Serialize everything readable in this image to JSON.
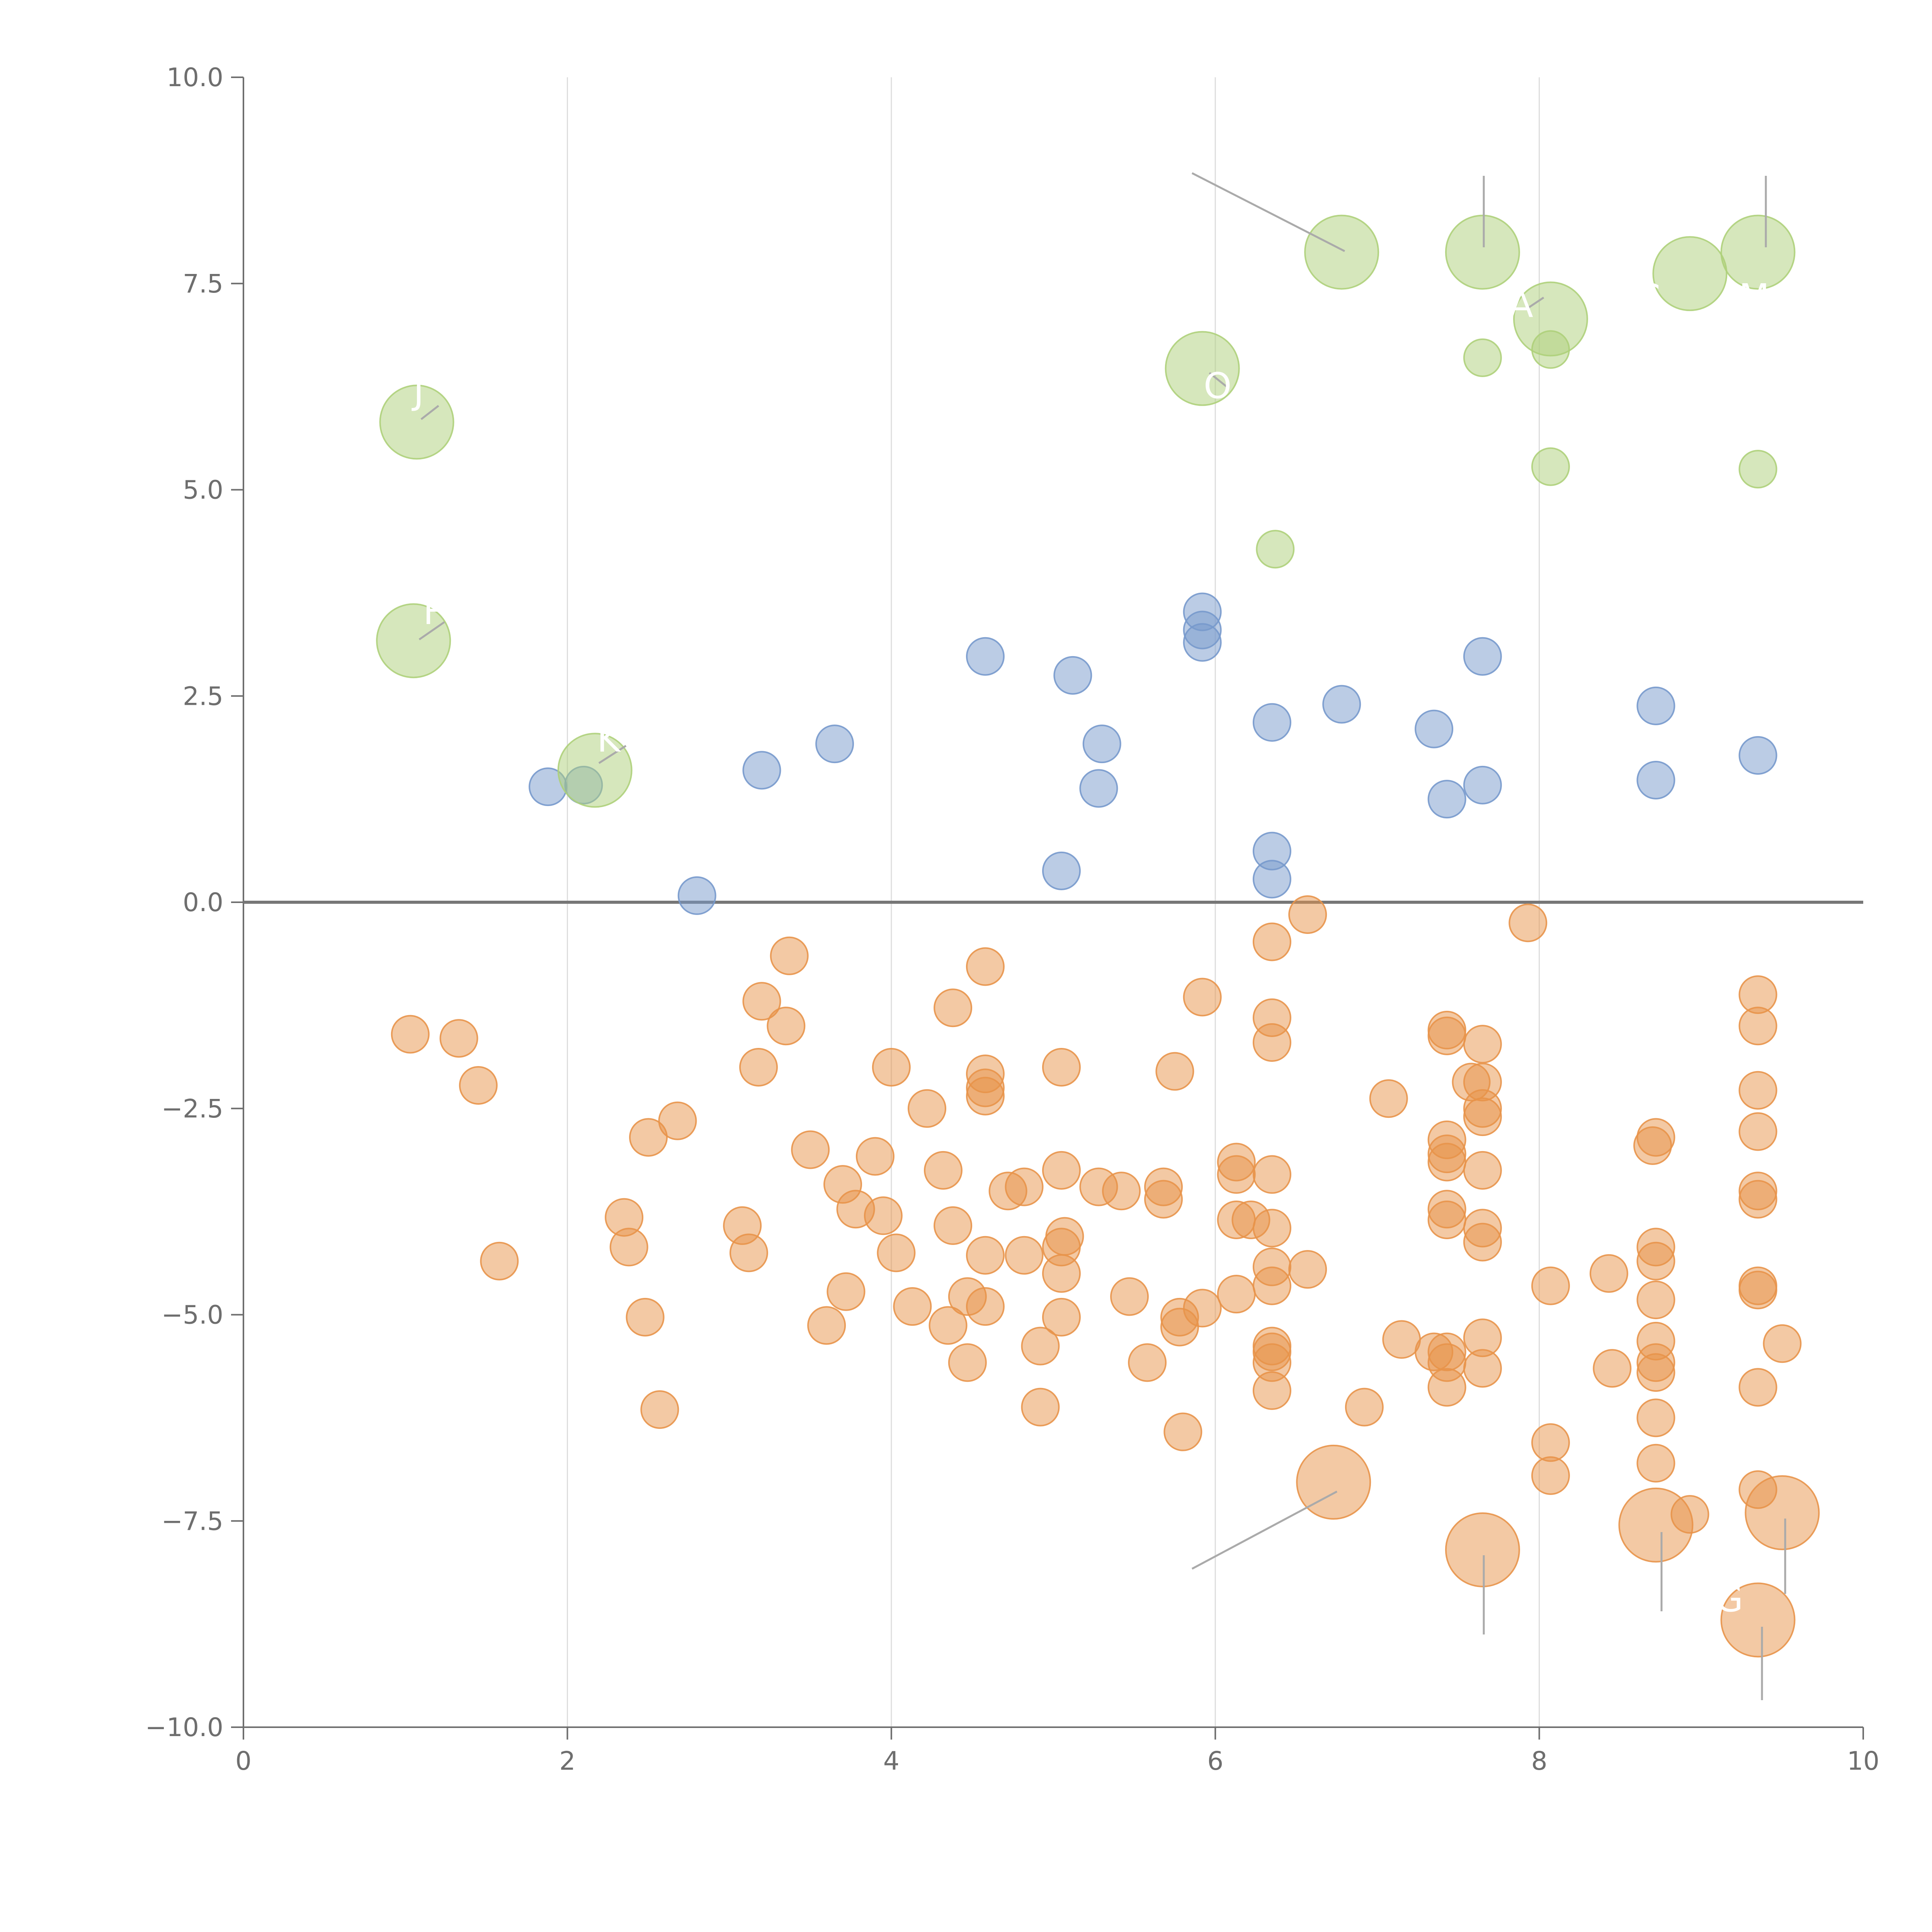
{
  "chart_data": {
    "type": "scatter",
    "title": "",
    "xlabel": "",
    "ylabel": "",
    "xlim": [
      0,
      10
    ],
    "ylim": [
      -10,
      10
    ],
    "xticks": [
      0,
      2,
      4,
      6,
      8,
      10
    ],
    "yticks": [
      10,
      7.5,
      5,
      2.5,
      0,
      -2.5,
      -5,
      -7.5,
      -10
    ],
    "xtick_labels": [
      "0",
      "2",
      "4",
      "6",
      "8",
      "10"
    ],
    "ytick_labels": [
      "10.0",
      "7.5",
      "5.0",
      "2.5",
      "0.0",
      "−2.5",
      "−5.0",
      "−7.5",
      "−10.0"
    ],
    "vertical_gridlines": [
      2,
      4,
      6,
      8
    ],
    "reference_line_y": 0,
    "colors": {
      "blue": "#7799cc",
      "orange": "#e8944a",
      "green": "#aed07a",
      "axis": "#6e6e6e",
      "grid": "#dddddd",
      "zero_line": "#777777",
      "leader": "#aaaaaa"
    },
    "series": [
      {
        "name": "blue",
        "color": "#7799cc",
        "points": [
          [
            1.88,
            1.4
          ],
          [
            2.1,
            1.42
          ],
          [
            2.8,
            0.08
          ],
          [
            3.2,
            1.6
          ],
          [
            3.65,
            1.92
          ],
          [
            4.58,
            2.98
          ],
          [
            5.05,
            0.38
          ],
          [
            5.12,
            2.75
          ],
          [
            5.28,
            1.38
          ],
          [
            5.3,
            1.92
          ],
          [
            5.92,
            3.52
          ],
          [
            5.92,
            3.3
          ],
          [
            5.92,
            3.15
          ],
          [
            6.35,
            2.18
          ],
          [
            6.35,
            0.62
          ],
          [
            6.35,
            0.28
          ],
          [
            6.78,
            2.4
          ],
          [
            7.35,
            2.1
          ],
          [
            7.43,
            1.25
          ],
          [
            7.65,
            2.98
          ],
          [
            7.65,
            1.42
          ],
          [
            8.72,
            2.38
          ],
          [
            8.72,
            1.48
          ],
          [
            9.35,
            1.78
          ]
        ]
      },
      {
        "name": "orange",
        "color": "#e8944a",
        "points": [
          [
            1.03,
            -1.6
          ],
          [
            1.33,
            -1.65
          ],
          [
            1.45,
            -2.22
          ],
          [
            1.58,
            -4.35
          ],
          [
            2.35,
            -3.82
          ],
          [
            2.38,
            -4.18
          ],
          [
            2.48,
            -5.03
          ],
          [
            2.5,
            -2.85
          ],
          [
            2.57,
            -6.15
          ],
          [
            2.68,
            -2.65
          ],
          [
            3.08,
            -3.92
          ],
          [
            3.12,
            -4.25
          ],
          [
            3.18,
            -2.0
          ],
          [
            3.2,
            -1.2
          ],
          [
            3.35,
            -1.5
          ],
          [
            3.37,
            -0.65
          ],
          [
            3.5,
            -3.0
          ],
          [
            3.6,
            -5.13
          ],
          [
            3.7,
            -3.42
          ],
          [
            3.72,
            -4.72
          ],
          [
            3.78,
            -3.72
          ],
          [
            3.9,
            -3.08
          ],
          [
            3.95,
            -3.8
          ],
          [
            4.0,
            -2.0
          ],
          [
            4.03,
            -4.25
          ],
          [
            4.13,
            -4.9
          ],
          [
            4.22,
            -2.5
          ],
          [
            4.32,
            -3.25
          ],
          [
            4.35,
            -5.13
          ],
          [
            4.38,
            -1.28
          ],
          [
            4.38,
            -3.92
          ],
          [
            4.47,
            -4.78
          ],
          [
            4.47,
            -5.58
          ],
          [
            4.58,
            -0.78
          ],
          [
            4.58,
            -2.08
          ],
          [
            4.58,
            -2.25
          ],
          [
            4.58,
            -2.35
          ],
          [
            4.58,
            -4.28
          ],
          [
            4.58,
            -4.9
          ],
          [
            4.72,
            -3.5
          ],
          [
            4.82,
            -3.45
          ],
          [
            4.82,
            -4.28
          ],
          [
            4.92,
            -5.38
          ],
          [
            4.92,
            -6.12
          ],
          [
            5.05,
            -2.0
          ],
          [
            5.05,
            -3.25
          ],
          [
            5.05,
            -4.18
          ],
          [
            5.05,
            -4.5
          ],
          [
            5.05,
            -5.03
          ],
          [
            5.07,
            -4.05
          ],
          [
            5.28,
            -3.45
          ],
          [
            5.42,
            -3.5
          ],
          [
            5.47,
            -4.78
          ],
          [
            5.58,
            -5.58
          ],
          [
            5.68,
            -3.45
          ],
          [
            5.68,
            -3.6
          ],
          [
            5.75,
            -2.05
          ],
          [
            5.78,
            -5.03
          ],
          [
            5.78,
            -5.15
          ],
          [
            5.8,
            -6.42
          ],
          [
            5.92,
            -1.15
          ],
          [
            5.92,
            -4.92
          ],
          [
            6.13,
            -3.15
          ],
          [
            6.13,
            -3.3
          ],
          [
            6.13,
            -3.85
          ],
          [
            6.13,
            -4.75
          ],
          [
            6.22,
            -3.85
          ],
          [
            6.35,
            -0.48
          ],
          [
            6.35,
            -1.4
          ],
          [
            6.35,
            -1.7
          ],
          [
            6.35,
            -3.3
          ],
          [
            6.35,
            -3.95
          ],
          [
            6.35,
            -4.42
          ],
          [
            6.35,
            -4.65
          ],
          [
            6.35,
            -5.38
          ],
          [
            6.35,
            -5.45
          ],
          [
            6.35,
            -5.58
          ],
          [
            6.35,
            -5.92
          ],
          [
            6.57,
            -0.15
          ],
          [
            6.57,
            -4.45
          ],
          [
            6.92,
            -6.12
          ],
          [
            7.07,
            -2.38
          ],
          [
            7.15,
            -5.3
          ],
          [
            7.35,
            -5.45
          ],
          [
            7.43,
            -1.55
          ],
          [
            7.43,
            -1.62
          ],
          [
            7.43,
            -2.88
          ],
          [
            7.43,
            -3.05
          ],
          [
            7.43,
            -3.15
          ],
          [
            7.43,
            -3.72
          ],
          [
            7.43,
            -3.85
          ],
          [
            7.43,
            -5.45
          ],
          [
            7.43,
            -5.58
          ],
          [
            7.43,
            -5.88
          ],
          [
            7.58,
            -2.18
          ],
          [
            7.65,
            -1.72
          ],
          [
            7.65,
            -2.18
          ],
          [
            7.65,
            -2.5
          ],
          [
            7.65,
            -2.6
          ],
          [
            7.65,
            -3.25
          ],
          [
            7.65,
            -3.95
          ],
          [
            7.65,
            -4.12
          ],
          [
            7.65,
            -5.28
          ],
          [
            7.65,
            -5.65
          ],
          [
            7.93,
            -0.25
          ],
          [
            8.07,
            -4.65
          ],
          [
            8.07,
            -6.55
          ],
          [
            8.07,
            -6.95
          ],
          [
            8.43,
            -4.5
          ],
          [
            8.45,
            -5.65
          ],
          [
            8.7,
            -2.95
          ],
          [
            8.72,
            -2.85
          ],
          [
            8.72,
            -4.18
          ],
          [
            8.72,
            -4.35
          ],
          [
            8.72,
            -4.82
          ],
          [
            8.72,
            -5.32
          ],
          [
            8.72,
            -5.58
          ],
          [
            8.72,
            -5.7
          ],
          [
            8.72,
            -6.25
          ],
          [
            8.72,
            -6.8
          ],
          [
            8.93,
            -7.42
          ],
          [
            9.35,
            -1.12
          ],
          [
            9.35,
            -1.5
          ],
          [
            9.35,
            -2.28
          ],
          [
            9.35,
            -2.78
          ],
          [
            9.35,
            -3.5
          ],
          [
            9.35,
            -3.6
          ],
          [
            9.35,
            -4.65
          ],
          [
            9.35,
            -4.7
          ],
          [
            9.35,
            -5.88
          ],
          [
            9.35,
            -7.12
          ],
          [
            9.5,
            -5.35
          ]
        ]
      },
      {
        "name": "green",
        "color": "#aed07a",
        "points": [
          [
            6.37,
            4.28
          ],
          [
            7.65,
            6.6
          ],
          [
            8.07,
            6.7
          ],
          [
            8.07,
            5.28
          ],
          [
            9.35,
            5.25
          ]
        ]
      }
    ],
    "highlighted": [
      {
        "x": 1.07,
        "y": 5.82,
        "color": "#aed07a",
        "label": "J"
      },
      {
        "x": 1.05,
        "y": 3.17,
        "color": "#aed07a",
        "label": "F"
      },
      {
        "x": 2.17,
        "y": 1.6,
        "color": "#aed07a",
        "label": "K"
      },
      {
        "x": 5.92,
        "y": 6.47,
        "color": "#aed07a",
        "label": "O"
      },
      {
        "x": 6.78,
        "y": 7.88,
        "color": "#aed07a",
        "label": ""
      },
      {
        "x": 7.65,
        "y": 7.88,
        "color": "#aed07a",
        "label": ""
      },
      {
        "x": 8.07,
        "y": 7.07,
        "color": "#aed07a",
        "label": "A"
      },
      {
        "x": 8.93,
        "y": 7.62,
        "color": "#aed07a",
        "label": "G"
      },
      {
        "x": 9.35,
        "y": 7.88,
        "color": "#aed07a",
        "label": "M"
      },
      {
        "x": 6.73,
        "y": -7.03,
        "color": "#e8944a",
        "label": ""
      },
      {
        "x": 7.65,
        "y": -7.85,
        "color": "#e8944a",
        "label": ""
      },
      {
        "x": 8.72,
        "y": -7.55,
        "color": "#e8944a",
        "label": ""
      },
      {
        "x": 9.35,
        "y": -8.7,
        "color": "#e8944a",
        "label": "G"
      },
      {
        "x": 9.5,
        "y": -7.4,
        "color": "#e8944a",
        "label": ""
      }
    ]
  }
}
